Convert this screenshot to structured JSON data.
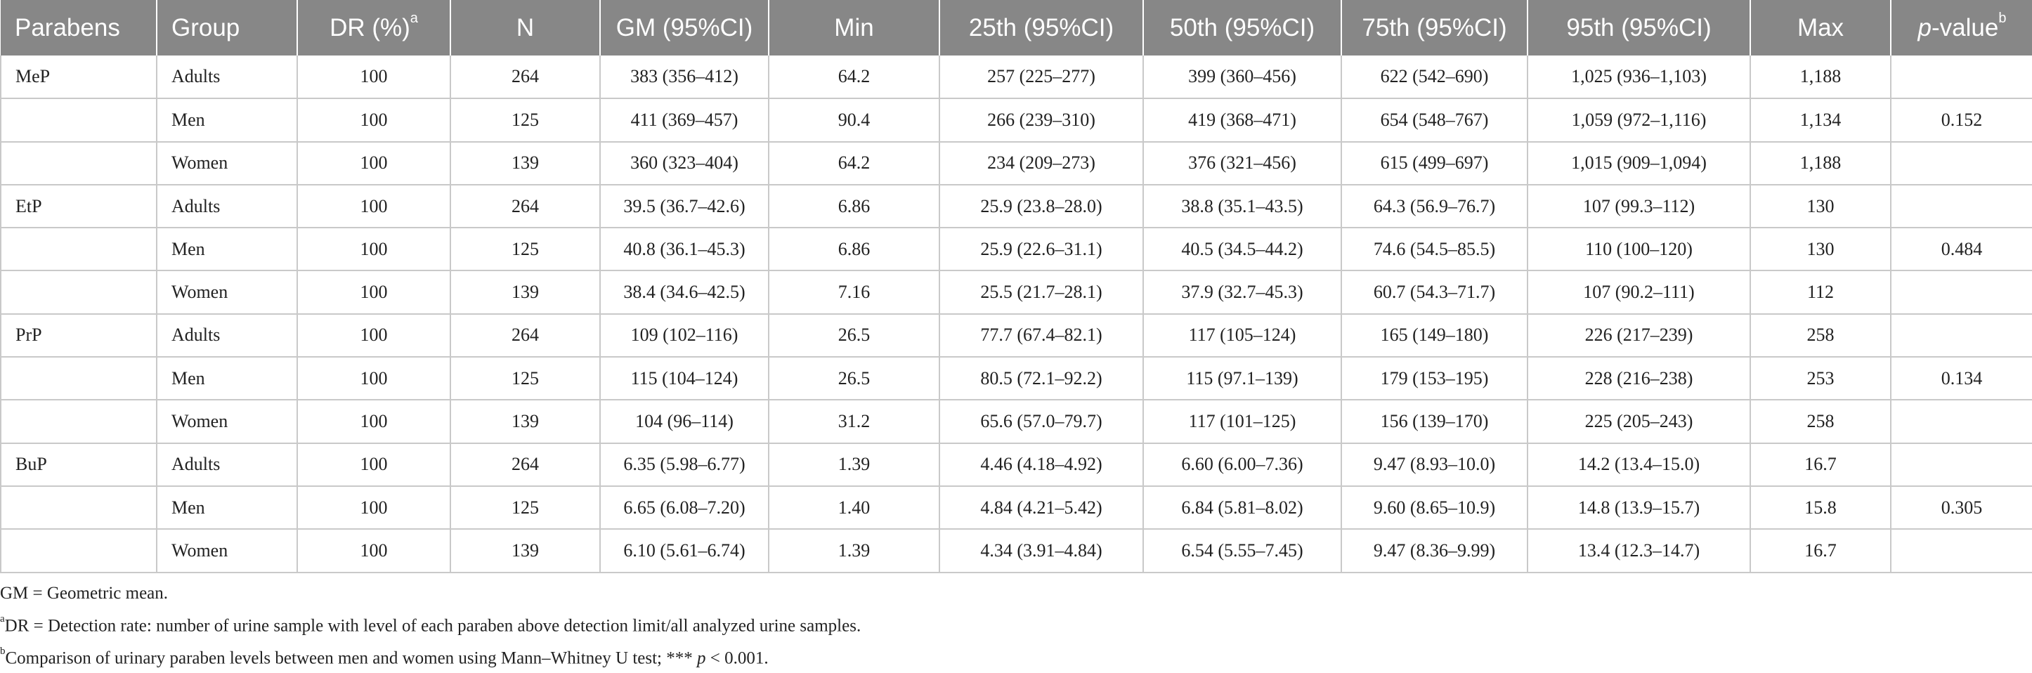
{
  "table": {
    "headers": {
      "parabens": "Parabens",
      "group": "Group",
      "dr": "DR (%)",
      "dr_sup": "a",
      "n": "N",
      "gm": "GM (95%CI)",
      "min": "Min",
      "p25": "25th (95%CI)",
      "p50": "50th (95%CI)",
      "p75": "75th (95%CI)",
      "p95": "95th (95%CI)",
      "max": "Max",
      "pvalue_italic": "p",
      "pvalue_rest": "-value",
      "pvalue_sup": "b"
    },
    "rows": [
      {
        "paraben": "MeP",
        "group": "Adults",
        "dr": "100",
        "n": "264",
        "gm": "383 (356–412)",
        "min": "64.2",
        "p25": "257 (225–277)",
        "p50": "399 (360–456)",
        "p75": "622 (542–690)",
        "p95": "1,025 (936–1,103)",
        "max": "1,188",
        "pvalue": ""
      },
      {
        "paraben": "",
        "group": "Men",
        "dr": "100",
        "n": "125",
        "gm": "411 (369–457)",
        "min": "90.4",
        "p25": "266 (239–310)",
        "p50": "419 (368–471)",
        "p75": "654 (548–767)",
        "p95": "1,059 (972–1,116)",
        "max": "1,134",
        "pvalue": "0.152"
      },
      {
        "paraben": "",
        "group": "Women",
        "dr": "100",
        "n": "139",
        "gm": "360 (323–404)",
        "min": "64.2",
        "p25": "234 (209–273)",
        "p50": "376 (321–456)",
        "p75": "615 (499–697)",
        "p95": "1,015 (909–1,094)",
        "max": "1,188",
        "pvalue": ""
      },
      {
        "paraben": "EtP",
        "group": "Adults",
        "dr": "100",
        "n": "264",
        "gm": "39.5 (36.7–42.6)",
        "min": "6.86",
        "p25": "25.9 (23.8–28.0)",
        "p50": "38.8 (35.1–43.5)",
        "p75": "64.3 (56.9–76.7)",
        "p95": "107 (99.3–112)",
        "max": "130",
        "pvalue": ""
      },
      {
        "paraben": "",
        "group": "Men",
        "dr": "100",
        "n": "125",
        "gm": "40.8 (36.1–45.3)",
        "min": "6.86",
        "p25": "25.9 (22.6–31.1)",
        "p50": "40.5 (34.5–44.2)",
        "p75": "74.6 (54.5–85.5)",
        "p95": "110 (100–120)",
        "max": "130",
        "pvalue": "0.484"
      },
      {
        "paraben": "",
        "group": "Women",
        "dr": "100",
        "n": "139",
        "gm": "38.4 (34.6–42.5)",
        "min": "7.16",
        "p25": "25.5 (21.7–28.1)",
        "p50": "37.9 (32.7–45.3)",
        "p75": "60.7 (54.3–71.7)",
        "p95": "107 (90.2–111)",
        "max": "112",
        "pvalue": ""
      },
      {
        "paraben": "PrP",
        "group": "Adults",
        "dr": "100",
        "n": "264",
        "gm": "109 (102–116)",
        "min": "26.5",
        "p25": "77.7 (67.4–82.1)",
        "p50": "117 (105–124)",
        "p75": "165 (149–180)",
        "p95": "226 (217–239)",
        "max": "258",
        "pvalue": ""
      },
      {
        "paraben": "",
        "group": "Men",
        "dr": "100",
        "n": "125",
        "gm": "115 (104–124)",
        "min": "26.5",
        "p25": "80.5 (72.1–92.2)",
        "p50": "115 (97.1–139)",
        "p75": "179 (153–195)",
        "p95": "228 (216–238)",
        "max": "253",
        "pvalue": "0.134"
      },
      {
        "paraben": "",
        "group": "Women",
        "dr": "100",
        "n": "139",
        "gm": "104 (96–114)",
        "min": "31.2",
        "p25": "65.6 (57.0–79.7)",
        "p50": "117 (101–125)",
        "p75": "156 (139–170)",
        "p95": "225 (205–243)",
        "max": "258",
        "pvalue": ""
      },
      {
        "paraben": "BuP",
        "group": "Adults",
        "dr": "100",
        "n": "264",
        "gm": "6.35 (5.98–6.77)",
        "min": "1.39",
        "p25": "4.46 (4.18–4.92)",
        "p50": "6.60 (6.00–7.36)",
        "p75": "9.47 (8.93–10.0)",
        "p95": "14.2 (13.4–15.0)",
        "max": "16.7",
        "pvalue": ""
      },
      {
        "paraben": "",
        "group": "Men",
        "dr": "100",
        "n": "125",
        "gm": "6.65 (6.08–7.20)",
        "min": "1.40",
        "p25": "4.84 (4.21–5.42)",
        "p50": "6.84 (5.81–8.02)",
        "p75": "9.60 (8.65–10.9)",
        "p95": "14.8 (13.9–15.7)",
        "max": "15.8",
        "pvalue": "0.305"
      },
      {
        "paraben": "",
        "group": "Women",
        "dr": "100",
        "n": "139",
        "gm": "6.10 (5.61–6.74)",
        "min": "1.39",
        "p25": "4.34 (3.91–4.84)",
        "p50": "6.54 (5.55–7.45)",
        "p75": "9.47 (8.36–9.99)",
        "p95": "13.4 (12.3–14.7)",
        "max": "16.7",
        "pvalue": ""
      }
    ]
  },
  "footnotes": {
    "gm": "GM = Geometric mean.",
    "a_sup": "a",
    "a_text": "DR = Detection rate: number of urine sample with level of each paraben above detection limit/all analyzed urine samples.",
    "b_sup": "b",
    "b_text_1": "Comparison of urinary paraben levels between men and women using Mann–Whitney U test; *** ",
    "b_p": "p",
    "b_text_2": " < 0.001."
  },
  "colors": {
    "header_bg": "#878787",
    "header_text": "#ffffff",
    "grid": "#c9c9c9"
  }
}
